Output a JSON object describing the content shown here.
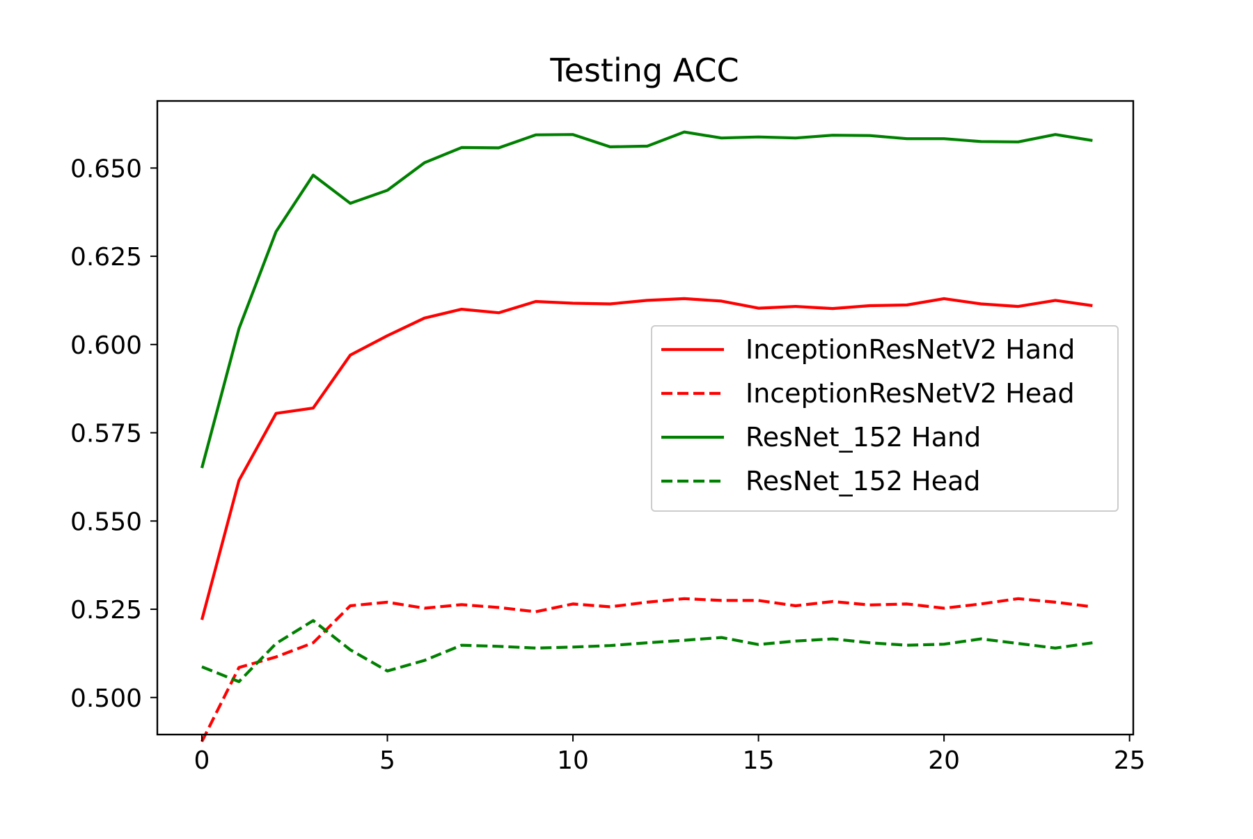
{
  "chart_data": {
    "type": "line",
    "title": "Testing ACC",
    "xlabel": "",
    "ylabel": "",
    "xlim": [
      -1.2,
      25.1
    ],
    "ylim": [
      0.4895,
      0.669
    ],
    "xticks": [
      0,
      5,
      10,
      15,
      20,
      25
    ],
    "yticks": [
      0.5,
      0.525,
      0.55,
      0.575,
      0.6,
      0.625,
      0.65
    ],
    "xtick_labels": [
      "0",
      "5",
      "10",
      "15",
      "20",
      "25"
    ],
    "ytick_labels": [
      "0.500",
      "0.525",
      "0.550",
      "0.575",
      "0.600",
      "0.625",
      "0.650"
    ],
    "grid": false,
    "legend_position": "center-right",
    "x": [
      0,
      1,
      2,
      3,
      4,
      5,
      6,
      7,
      8,
      9,
      10,
      11,
      12,
      13,
      14,
      15,
      16,
      17,
      18,
      19,
      20,
      21,
      22,
      23,
      24
    ],
    "series": [
      {
        "name": "InceptionResNetV2 Hand",
        "color": "#ff0000",
        "dash": "solid",
        "values": [
          0.522,
          0.5615,
          0.5805,
          0.582,
          0.597,
          0.6025,
          0.6075,
          0.61,
          0.609,
          0.6122,
          0.6117,
          0.6115,
          0.6125,
          0.613,
          0.6123,
          0.6103,
          0.6108,
          0.6102,
          0.611,
          0.6112,
          0.613,
          0.6115,
          0.6108,
          0.6125,
          0.611
        ]
      },
      {
        "name": "InceptionResNetV2 Head",
        "color": "#ff0000",
        "dash": "dashed",
        "values": [
          0.4875,
          0.5085,
          0.5115,
          0.5155,
          0.526,
          0.527,
          0.5253,
          0.5263,
          0.5255,
          0.5243,
          0.5265,
          0.5257,
          0.527,
          0.528,
          0.5275,
          0.5275,
          0.526,
          0.5272,
          0.5262,
          0.5265,
          0.5253,
          0.5265,
          0.528,
          0.527,
          0.5257
        ]
      },
      {
        "name": "ResNet_152 Hand",
        "color": "#008000",
        "dash": "solid",
        "values": [
          0.565,
          0.6045,
          0.632,
          0.648,
          0.64,
          0.6437,
          0.6515,
          0.6558,
          0.6557,
          0.6594,
          0.6595,
          0.656,
          0.6562,
          0.6602,
          0.6585,
          0.6588,
          0.6585,
          0.6593,
          0.6592,
          0.6583,
          0.6583,
          0.6575,
          0.6574,
          0.6595,
          0.6578
        ]
      },
      {
        "name": "ResNet_152 Head",
        "color": "#008000",
        "dash": "dashed",
        "values": [
          0.5087,
          0.5045,
          0.5153,
          0.5218,
          0.5135,
          0.5075,
          0.5105,
          0.5148,
          0.5145,
          0.514,
          0.5143,
          0.5147,
          0.5155,
          0.5162,
          0.517,
          0.515,
          0.516,
          0.5166,
          0.5155,
          0.5148,
          0.5151,
          0.5166,
          0.5153,
          0.514,
          0.5155
        ]
      }
    ]
  }
}
